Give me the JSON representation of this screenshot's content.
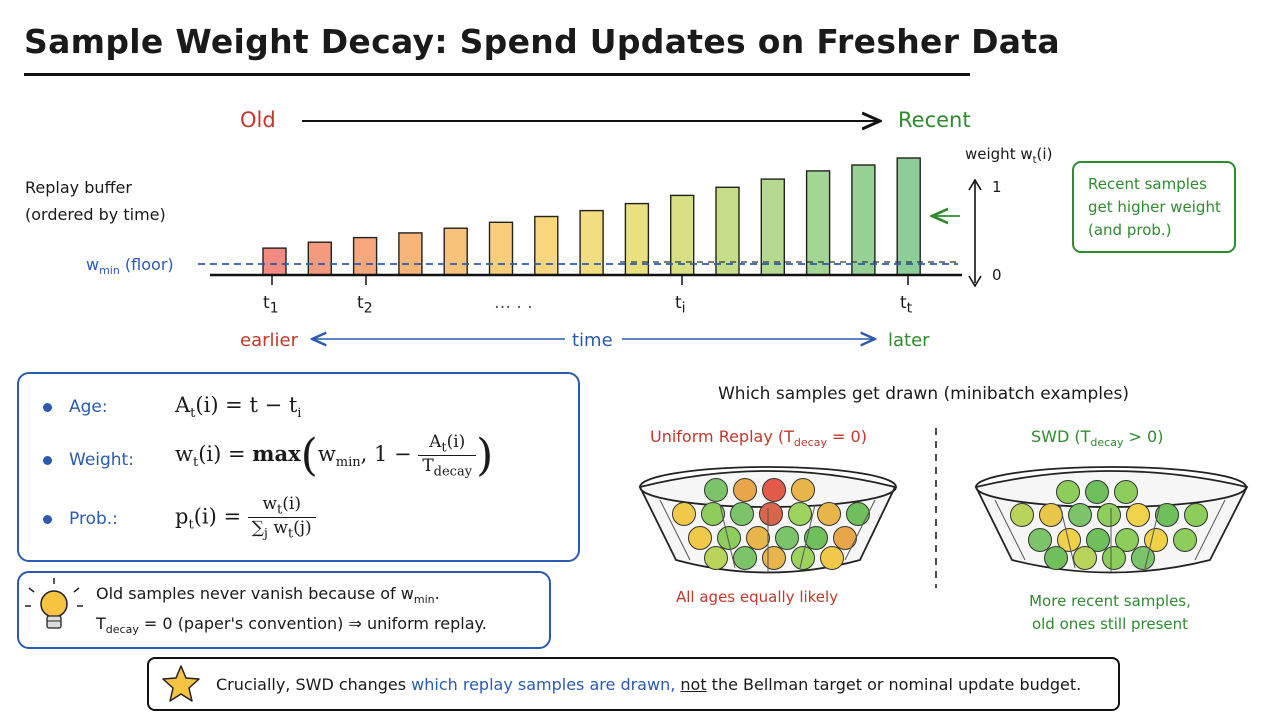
{
  "title": "Sample Weight Decay: Spend Updates on Fresher Data",
  "timeline": {
    "old_label": "Old",
    "recent_label": "Recent",
    "buffer_label_line1": "Replay buffer",
    "buffer_label_line2": "(ordered by time)",
    "wmin_label": "w",
    "wmin_sub": "min",
    "wmin_suffix": " (floor)",
    "weight_axis_label": "weight w",
    "weight_axis_sub": "t",
    "weight_axis_suffix": "(i)",
    "y_top": "1",
    "y_bottom": "0",
    "tick_1": "t",
    "tick_1_sub": "1",
    "tick_2": "t",
    "tick_2_sub": "2",
    "tick_dots": "… . .",
    "tick_i": "t",
    "tick_i_sub": "i",
    "tick_t": "t",
    "tick_t_sub": "t",
    "earlier_label": "earlier",
    "time_label": "time",
    "later_label": "later",
    "callout_line1": "Recent samples",
    "callout_line2": "get higher weight",
    "callout_line3": "(and prob.)"
  },
  "chart_data": {
    "type": "bar",
    "title": "",
    "ylabel": "weight w_t(i)",
    "xlabel": "time",
    "ylim": [
      0,
      1
    ],
    "floor": 0.1,
    "values": [
      0.23,
      0.28,
      0.32,
      0.36,
      0.4,
      0.45,
      0.5,
      0.55,
      0.61,
      0.68,
      0.75,
      0.82,
      0.89,
      0.94,
      1.0
    ],
    "colors": [
      "#f28b82",
      "#f49a7e",
      "#f6a77c",
      "#f8b57a",
      "#f9c27a",
      "#f9cd7c",
      "#f8d77f",
      "#f2dd80",
      "#e9e07f",
      "#d9df83",
      "#c6dd8a",
      "#b4d98f",
      "#a3d594",
      "#97d196",
      "#8ccd98"
    ]
  },
  "formulas": {
    "age_label": "Age:",
    "weight_label": "Weight:",
    "prob_label": "Prob.:",
    "age_lhs": "A",
    "age_lhs_sub": "t",
    "age_lhs_arg": "(i) = t − t",
    "age_rhs_sub": "i",
    "weight_lhs": "w",
    "weight_lhs_sub": "t",
    "weight_lhs_arg": "(i) = ",
    "weight_max": "max",
    "weight_wmin": "w",
    "weight_wmin_sub": "min",
    "weight_one": ", 1 −",
    "weight_num": "A",
    "weight_num_sub": "t",
    "weight_num_arg": "(i)",
    "weight_den": "T",
    "weight_den_sub": "decay",
    "prob_lhs": "p",
    "prob_lhs_sub": "t",
    "prob_lhs_arg": "(i) = ",
    "prob_num": "w",
    "prob_num_sub": "t",
    "prob_num_arg": "(i)",
    "prob_den_sum": "∑",
    "prob_den_sub": "j",
    "prob_den_w": " w",
    "prob_den_wsub": "t",
    "prob_den_arg": "(j)"
  },
  "tip": {
    "line1_a": "Old samples never vanish because of w",
    "line1_sub": "min",
    "line1_b": ".",
    "line2_a": "T",
    "line2_sub": "decay",
    "line2_b": " = 0 (paper's convention) ⇒ uniform replay."
  },
  "bottom": {
    "part1": "Crucially, SWD changes ",
    "part2": "which replay samples are drawn,",
    "part3": " ",
    "part4": "not",
    "part5": " the Bellman target or nominal update budget."
  },
  "draw": {
    "heading": "Which samples get drawn (minibatch examples)",
    "uniform_heading": "Uniform Replay (T",
    "uniform_sub": "decay",
    "uniform_suffix": " = 0)",
    "swd_heading": "SWD (T",
    "swd_sub": "decay",
    "swd_suffix": " > 0)",
    "uniform_caption": "All ages equally likely",
    "swd_caption_line1": "More recent samples,",
    "swd_caption_line2": "old ones still present",
    "uniform_balls": [
      "#7cc46a",
      "#e8a64a",
      "#e25a4a",
      "#e8b54a",
      "#f0c94a",
      "#8ccd5c",
      "#7cc46a",
      "#d9654d",
      "#9bd35c",
      "#e8b54a",
      "#6fbf5c",
      "#f0c94a",
      "#8ccd5c",
      "#e8b54a",
      "#7cc46a",
      "#6fbf5c",
      "#e8a64a",
      "#b8d45a",
      "#7cc46a",
      "#e8b54a",
      "#9bd35c",
      "#f0c94a",
      "#8ccd5c"
    ],
    "swd_balls": [
      "#8ccd5c",
      "#6fbf5c",
      "#8ccd5c",
      "#b8d45a",
      "#e8c64a",
      "#7cc46a",
      "#8ccd5c",
      "#f0d24a",
      "#6fbf5c",
      "#8ccd5c",
      "#7cc46a",
      "#f0d24a",
      "#6fbf5c",
      "#8ccd5c",
      "#f0d24a",
      "#8ccd5c",
      "#6fbf5c",
      "#b8d45a",
      "#8ccd5c",
      "#7cc46a"
    ]
  },
  "colors": {
    "old": "#c0392b",
    "recent": "#2e8b2e",
    "blue": "#2a5bb0"
  }
}
